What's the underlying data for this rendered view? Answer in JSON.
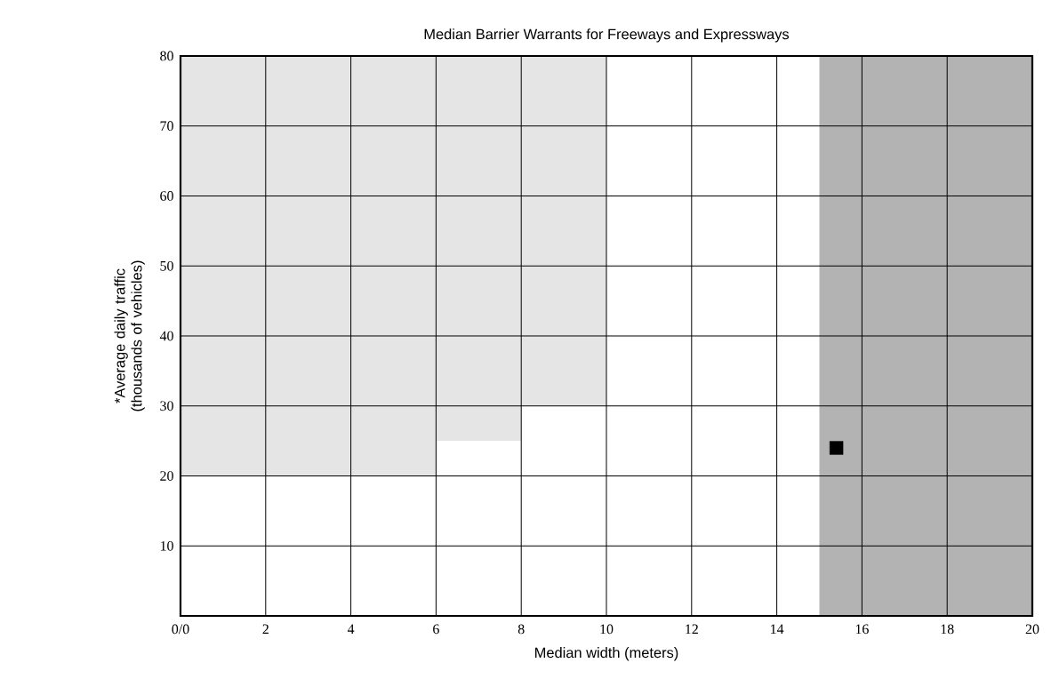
{
  "chart_data": {
    "type": "scatter",
    "title": "Median Barrier Warrants for Freeways and Expressways",
    "xlabel": "Median width (meters)",
    "ylabel": "*Average daily traffic (thousands of vehicles)",
    "xlim": [
      0,
      20
    ],
    "ylim": [
      0,
      80
    ],
    "xticks": [
      {
        "value": 0,
        "label": "0/0"
      },
      2,
      4,
      6,
      8,
      10,
      12,
      14,
      16,
      18,
      20
    ],
    "yticks": [
      10,
      20,
      30,
      40,
      50,
      60,
      70,
      80
    ],
    "grid": true,
    "bands": [
      {
        "axis": "x",
        "from": 15,
        "to": 20,
        "color": "#b3b3b3"
      }
    ],
    "series": [
      {
        "type": "area",
        "color": "#e5e5e5",
        "x": [
          0,
          0,
          6,
          6,
          8,
          8,
          10,
          10
        ],
        "values": [
          80,
          20,
          20,
          25,
          25,
          30,
          30,
          80
        ]
      },
      {
        "type": "scatter",
        "color": "#000000",
        "marker": "square",
        "x": [
          15.4
        ],
        "values": [
          24
        ]
      }
    ]
  }
}
